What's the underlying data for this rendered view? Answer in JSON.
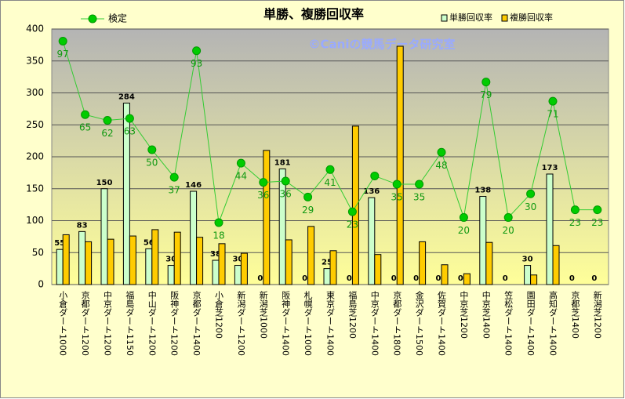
{
  "chart_data": {
    "type": "bar-line",
    "title": "単勝、複勝回収率",
    "watermark": "©Caniの競馬データ研究室",
    "categories": [
      "小倉ダート1000",
      "京都ダート1200",
      "中京ダート1200",
      "福島ダート1150",
      "中山ダート1200",
      "阪神ダート1200",
      "京都ダート1400",
      "小倉芝1200",
      "新潟ダート1200",
      "新潟芝1000",
      "阪神ダート1400",
      "札幌ダート1000",
      "東京ダート1400",
      "福島芝1200",
      "中京ダート1400",
      "京都ダート1800",
      "金沢ダート1500",
      "佐賀ダート1400",
      "中京芝1200",
      "中京芝1400",
      "笠松ダート1400",
      "園田ダート1400",
      "高知ダート1400",
      "京都芝1400",
      "新潟芝1200"
    ],
    "series": [
      {
        "name": "検定",
        "type": "line",
        "color": "#33cc33",
        "values": [
          381,
          266,
          257,
          260,
          211,
          168,
          366,
          97,
          190,
          160,
          162,
          137,
          180,
          114,
          170,
          157,
          157,
          207,
          105,
          317,
          105,
          142,
          287,
          117,
          117
        ],
        "point_labels": [
          97,
          65,
          62,
          63,
          50,
          37,
          93,
          18,
          44,
          36,
          36,
          29,
          41,
          23,
          null,
          35,
          35,
          48,
          20,
          79,
          20,
          30,
          71,
          23,
          23
        ]
      },
      {
        "name": "単勝回収率",
        "type": "bar",
        "color": "#ccffcc",
        "values": [
          55,
          83,
          150,
          284,
          56,
          30,
          146,
          38,
          30,
          0,
          181,
          0,
          25,
          0,
          136,
          0,
          0,
          0,
          0,
          138,
          0,
          30,
          173,
          0,
          0
        ]
      },
      {
        "name": "複勝回収率",
        "type": "bar",
        "color": "#ffcc00",
        "values": [
          78,
          67,
          71,
          76,
          86,
          82,
          74,
          64,
          49,
          210,
          70,
          91,
          53,
          248,
          47,
          373,
          67,
          31,
          17,
          66,
          0,
          15,
          61,
          0,
          0
        ]
      }
    ],
    "ylim": [
      0,
      400
    ],
    "yticks": [
      0,
      50,
      100,
      150,
      200,
      250,
      300,
      350,
      400
    ],
    "grid": true
  }
}
